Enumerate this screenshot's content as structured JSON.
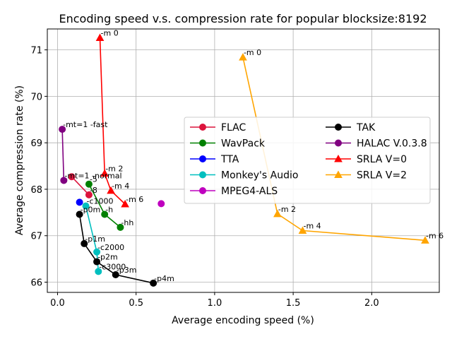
{
  "chart_data": {
    "type": "line",
    "title": "Encoding speed v.s. compression rate for popular blocksize:8192",
    "xlabel": "Average encoding speed (%)",
    "ylabel": "Average compression rate (%)",
    "xlim": [
      -0.065,
      2.43
    ],
    "ylim": [
      65.78,
      71.45
    ],
    "xticks": [
      0.0,
      0.5,
      1.0,
      1.5,
      2.0
    ],
    "xtick_labels": [
      "0.0",
      "0.5",
      "1.0",
      "1.5",
      "2.0"
    ],
    "yticks": [
      66,
      67,
      68,
      69,
      70,
      71
    ],
    "ytick_labels": [
      "66",
      "67",
      "68",
      "69",
      "70",
      "71"
    ],
    "grid": true,
    "legend": {
      "placement": "center-right",
      "columns": 2
    },
    "series": [
      {
        "name": "FLAC",
        "color": "#dc143c",
        "marker": "circle",
        "points": [
          {
            "x": 0.09,
            "y": 68.27,
            "label": ""
          },
          {
            "x": 0.2,
            "y": 67.88,
            "label": "-8"
          }
        ]
      },
      {
        "name": "WavPack",
        "color": "#008000",
        "marker": "circle",
        "points": [
          {
            "x": 0.2,
            "y": 68.11,
            "label": "-5"
          },
          {
            "x": 0.3,
            "y": 67.46,
            "label": "-h"
          },
          {
            "x": 0.4,
            "y": 67.18,
            "label": "-hh"
          }
        ]
      },
      {
        "name": "TTA",
        "color": "#0000ff",
        "marker": "circle",
        "points": [
          {
            "x": 0.14,
            "y": 67.72,
            "label": ""
          }
        ]
      },
      {
        "name": "Monkey's Audio",
        "color": "#00bfbf",
        "marker": "circle",
        "points": [
          {
            "x": 0.18,
            "y": 67.64,
            "label": "-c1000"
          },
          {
            "x": 0.25,
            "y": 66.65,
            "label": "-c2000"
          },
          {
            "x": 0.26,
            "y": 66.23,
            "label": "-c3000"
          }
        ]
      },
      {
        "name": "MPEG4-ALS",
        "color": "#bf00bf",
        "marker": "circle",
        "points": [
          {
            "x": 0.66,
            "y": 67.69,
            "label": ""
          }
        ]
      },
      {
        "name": "TAK",
        "color": "#000000",
        "marker": "circle",
        "points": [
          {
            "x": 0.14,
            "y": 67.46,
            "label": "-p0m"
          },
          {
            "x": 0.17,
            "y": 66.83,
            "label": "-p1m"
          },
          {
            "x": 0.25,
            "y": 66.44,
            "label": "-p2m"
          },
          {
            "x": 0.37,
            "y": 66.16,
            "label": "-p3m"
          },
          {
            "x": 0.61,
            "y": 65.98,
            "label": "-p4m"
          }
        ]
      },
      {
        "name": "HALAC V.0.3.8",
        "color": "#800080",
        "marker": "circle",
        "points": [
          {
            "x": 0.03,
            "y": 69.29,
            "label": "-mt=1 -fast"
          },
          {
            "x": 0.04,
            "y": 68.19,
            "label": "-mt=1 -normal"
          }
        ]
      },
      {
        "name": "SRLA V=0",
        "color": "#ff0000",
        "marker": "triangle",
        "points": [
          {
            "x": 0.27,
            "y": 71.26,
            "label": "-m 0"
          },
          {
            "x": 0.3,
            "y": 68.34,
            "label": "-m 2"
          },
          {
            "x": 0.34,
            "y": 67.97,
            "label": "-m 4"
          },
          {
            "x": 0.43,
            "y": 67.68,
            "label": "-m 6"
          }
        ]
      },
      {
        "name": "SRLA V=2",
        "color": "#ffa500",
        "marker": "triangle",
        "points": [
          {
            "x": 1.18,
            "y": 70.84,
            "label": "-m 0"
          },
          {
            "x": 1.4,
            "y": 67.47,
            "label": "-m 2"
          },
          {
            "x": 1.56,
            "y": 67.11,
            "label": "-m 4"
          },
          {
            "x": 2.34,
            "y": 66.9,
            "label": "-m 6"
          }
        ]
      }
    ]
  }
}
